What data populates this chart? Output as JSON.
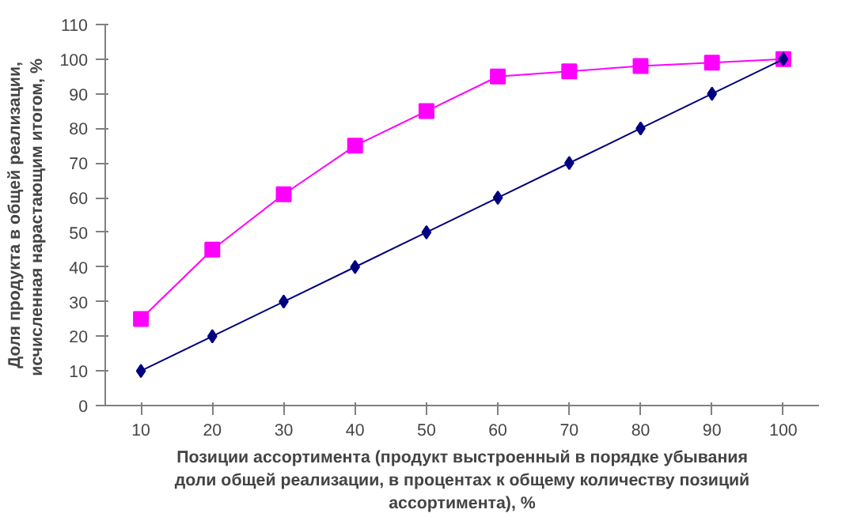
{
  "chart_data": {
    "type": "line",
    "categories": [
      "10",
      "20",
      "30",
      "40",
      "50",
      "60",
      "70",
      "80",
      "90",
      "100"
    ],
    "series": [
      {
        "color": "#ff00ff",
        "marker": "square",
        "values": [
          25,
          45,
          61,
          75,
          85,
          95,
          96.5,
          98,
          99,
          100
        ]
      },
      {
        "color": "#000080",
        "marker": "diamond",
        "values": [
          10,
          20,
          30,
          40,
          50,
          60,
          70,
          80,
          90,
          100
        ]
      }
    ],
    "ylim": [
      0,
      110
    ],
    "yticks": [
      0,
      10,
      20,
      30,
      40,
      50,
      60,
      70,
      80,
      90,
      100,
      110
    ],
    "ylabel": "Доля продукта в общей реализации,\nисчисленная  нарастающим итогом, %",
    "xlabel": "Позиции ассортимента (продукт выстроенный в порядке убывания\nдоли общей реализации, в процентах к общему количеству позиций\nассортимента), %",
    "grid": false,
    "line_style": "solid"
  }
}
